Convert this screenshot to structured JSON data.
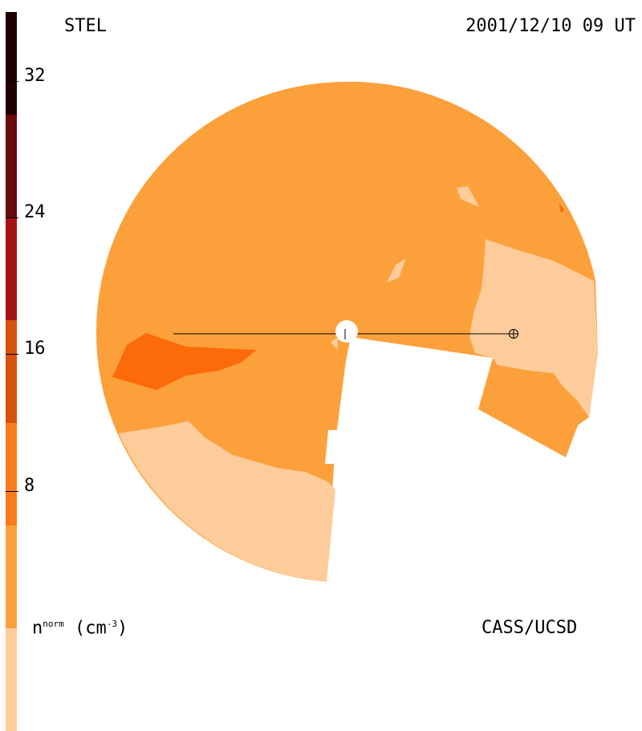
{
  "header": {
    "left_label": "STEL",
    "timestamp": "2001/12/10 09 UT"
  },
  "footer": {
    "unit_label_base": "n",
    "unit_label_sup": "norm",
    "unit_label_units": "(cm",
    "unit_label_exp": "-3",
    "unit_label_close": ")",
    "credit": "CASS/UCSD"
  },
  "colorbar": {
    "tick_labels": [
      "32",
      "24",
      "16",
      "8"
    ],
    "colors_top_to_bottom": [
      "#200000",
      "#6a0a0a",
      "#a51212",
      "#d9500f",
      "#ff7a1a",
      "#fca03c",
      "#fdcc9a"
    ]
  },
  "map": {
    "colors": {
      "low": "#fdcc9a",
      "mid": "#fca03c",
      "high": "#ff7a1a",
      "higher": "#fd6a0a"
    }
  }
}
